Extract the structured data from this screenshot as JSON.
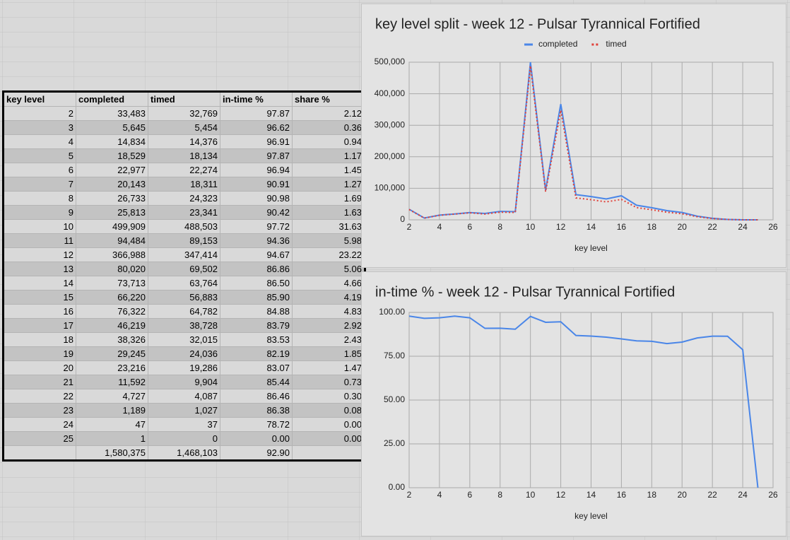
{
  "table": {
    "header": [
      "key level",
      "completed",
      "timed",
      "in-time %",
      "share %"
    ],
    "rows": [
      [
        "2",
        "33,483",
        "32,769",
        "97.87",
        "2.12"
      ],
      [
        "3",
        "5,645",
        "5,454",
        "96.62",
        "0.36"
      ],
      [
        "4",
        "14,834",
        "14,376",
        "96.91",
        "0.94"
      ],
      [
        "5",
        "18,529",
        "18,134",
        "97.87",
        "1.17"
      ],
      [
        "6",
        "22,977",
        "22,274",
        "96.94",
        "1.45"
      ],
      [
        "7",
        "20,143",
        "18,311",
        "90.91",
        "1.27"
      ],
      [
        "8",
        "26,733",
        "24,323",
        "90.98",
        "1.69"
      ],
      [
        "9",
        "25,813",
        "23,341",
        "90.42",
        "1.63"
      ],
      [
        "10",
        "499,909",
        "488,503",
        "97.72",
        "31.63"
      ],
      [
        "11",
        "94,484",
        "89,153",
        "94.36",
        "5.98"
      ],
      [
        "12",
        "366,988",
        "347,414",
        "94.67",
        "23.22"
      ],
      [
        "13",
        "80,020",
        "69,502",
        "86.86",
        "5.06"
      ],
      [
        "14",
        "73,713",
        "63,764",
        "86.50",
        "4.66"
      ],
      [
        "15",
        "66,220",
        "56,883",
        "85.90",
        "4.19"
      ],
      [
        "16",
        "76,322",
        "64,782",
        "84.88",
        "4.83"
      ],
      [
        "17",
        "46,219",
        "38,728",
        "83.79",
        "2.92"
      ],
      [
        "18",
        "38,326",
        "32,015",
        "83.53",
        "2.43"
      ],
      [
        "19",
        "29,245",
        "24,036",
        "82.19",
        "1.85"
      ],
      [
        "20",
        "23,216",
        "19,286",
        "83.07",
        "1.47"
      ],
      [
        "21",
        "11,592",
        "9,904",
        "85.44",
        "0.73"
      ],
      [
        "22",
        "4,727",
        "4,087",
        "86.46",
        "0.30"
      ],
      [
        "23",
        "1,189",
        "1,027",
        "86.38",
        "0.08"
      ],
      [
        "24",
        "47",
        "37",
        "78.72",
        "0.00"
      ],
      [
        "25",
        "1",
        "0",
        "0.00",
        "0.00"
      ]
    ],
    "totals": [
      "1,580,375",
      "1,468,103",
      "92.90"
    ]
  },
  "chart_data": [
    {
      "type": "line",
      "title": "key level split - week 12 - Pulsar Tyrannical Fortified",
      "xlabel": "key level",
      "legend": "top",
      "grid": true,
      "x": [
        2,
        3,
        4,
        5,
        6,
        7,
        8,
        9,
        10,
        11,
        12,
        13,
        14,
        15,
        16,
        17,
        18,
        19,
        20,
        21,
        22,
        23,
        24,
        25
      ],
      "series": [
        {
          "name": "completed",
          "color": "#4a86e8",
          "style": "solid",
          "values": [
            33483,
            5645,
            14834,
            18529,
            22977,
            20143,
            26733,
            25813,
            499909,
            94484,
            366988,
            80020,
            73713,
            66220,
            76322,
            46219,
            38326,
            29245,
            23216,
            11592,
            4727,
            1189,
            47,
            1
          ]
        },
        {
          "name": "timed",
          "color": "#e0413a",
          "style": "dotted",
          "values": [
            32769,
            5454,
            14376,
            18134,
            22274,
            18311,
            24323,
            23341,
            488503,
            89153,
            347414,
            69502,
            63764,
            56883,
            64782,
            38728,
            32015,
            24036,
            19286,
            9904,
            4087,
            1027,
            37,
            0
          ]
        }
      ],
      "xlim": [
        2,
        26
      ],
      "xticks": [
        2,
        4,
        6,
        8,
        10,
        12,
        14,
        16,
        18,
        20,
        22,
        24,
        26
      ],
      "ylim": [
        0,
        500000
      ],
      "yticks": [
        0,
        {
          "value": 100000,
          "label": "100,000"
        },
        {
          "value": 200000,
          "label": "200,000"
        },
        {
          "value": 300000,
          "label": "300,000"
        },
        {
          "value": 400000,
          "label": "400,000"
        },
        {
          "value": 500000,
          "label": "500,000"
        }
      ]
    },
    {
      "type": "line",
      "title": "in-time % - week 12 - Pulsar Tyrannical Fortified",
      "xlabel": "key level",
      "grid": true,
      "x": [
        2,
        3,
        4,
        5,
        6,
        7,
        8,
        9,
        10,
        11,
        12,
        13,
        14,
        15,
        16,
        17,
        18,
        19,
        20,
        21,
        22,
        23,
        24,
        25
      ],
      "series": [
        {
          "color": "#4a86e8",
          "style": "solid",
          "values": [
            97.87,
            96.62,
            96.91,
            97.87,
            96.94,
            90.91,
            90.98,
            90.42,
            97.72,
            94.36,
            94.67,
            86.86,
            86.5,
            85.9,
            84.88,
            83.79,
            83.53,
            82.19,
            83.07,
            85.44,
            86.46,
            86.38,
            78.72,
            0
          ]
        }
      ],
      "xlim": [
        2,
        26
      ],
      "xticks": [
        2,
        4,
        6,
        8,
        10,
        12,
        14,
        16,
        18,
        20,
        22,
        24,
        26
      ],
      "ylim": [
        0,
        100
      ],
      "yticks": [
        {
          "value": 0,
          "label": "0.00"
        },
        {
          "value": 25,
          "label": "25.00"
        },
        {
          "value": 50,
          "label": "50.00"
        },
        {
          "value": 75,
          "label": "75.00"
        },
        {
          "value": 100,
          "label": "100.00"
        }
      ]
    }
  ]
}
